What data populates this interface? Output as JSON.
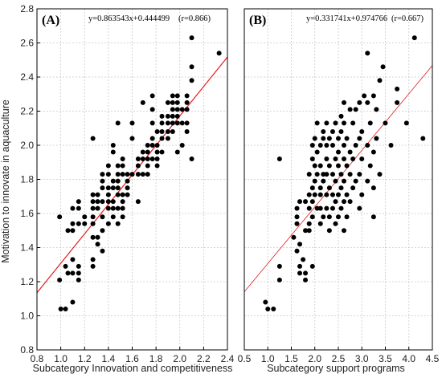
{
  "y_axis_label": "Motivation to innovate in aquaculture",
  "chart_data": [
    {
      "type": "scatter",
      "panel_label": "(A)",
      "equation": "y=0.863543x+0.444499",
      "r_text": "(r=0.866)",
      "xlabel": "Subcategory Innovation and competitiveness",
      "ylabel": "Motivation to innovate in aquaculture",
      "xlim": [
        0.8,
        2.4
      ],
      "ylim": [
        0.8,
        2.8
      ],
      "xticks": [
        "0.8",
        "1.0",
        "1.2",
        "1.4",
        "1.6",
        "1.8",
        "2.0",
        "2.2",
        "2.4"
      ],
      "yticks": [
        "0.8",
        "1.0",
        "1.2",
        "1.4",
        "1.6",
        "1.8",
        "2.0",
        "2.2",
        "2.4",
        "2.6",
        "2.8"
      ],
      "grid": true,
      "fit": {
        "slope": 0.863543,
        "intercept": 0.444499,
        "color": "#e31a1c"
      },
      "points": [
        [
          1.0,
          1.04
        ],
        [
          1.04,
          1.04
        ],
        [
          1.1,
          1.08
        ],
        [
          0.99,
          1.21
        ],
        [
          1.06,
          1.25
        ],
        [
          1.1,
          1.25
        ],
        [
          1.04,
          1.29
        ],
        [
          1.1,
          1.33
        ],
        [
          1.15,
          1.21
        ],
        [
          1.15,
          1.25
        ],
        [
          1.15,
          1.29
        ],
        [
          0.99,
          1.58
        ],
        [
          1.06,
          1.5
        ],
        [
          1.1,
          1.5
        ],
        [
          1.1,
          1.54
        ],
        [
          1.1,
          1.63
        ],
        [
          1.15,
          1.54
        ],
        [
          1.15,
          1.63
        ],
        [
          1.15,
          1.67
        ],
        [
          1.2,
          1.54
        ],
        [
          1.2,
          1.58
        ],
        [
          1.27,
          1.29
        ],
        [
          1.27,
          1.33
        ],
        [
          1.27,
          1.46
        ],
        [
          1.27,
          1.54
        ],
        [
          1.27,
          1.58
        ],
        [
          1.27,
          1.63
        ],
        [
          1.27,
          1.67
        ],
        [
          1.27,
          1.71
        ],
        [
          1.27,
          2.04
        ],
        [
          1.31,
          1.42
        ],
        [
          1.31,
          1.46
        ],
        [
          1.31,
          1.63
        ],
        [
          1.31,
          1.67
        ],
        [
          1.31,
          1.71
        ],
        [
          1.35,
          1.38
        ],
        [
          1.35,
          1.5
        ],
        [
          1.35,
          1.58
        ],
        [
          1.35,
          1.67
        ],
        [
          1.35,
          1.75
        ],
        [
          1.35,
          1.79
        ],
        [
          1.35,
          1.83
        ],
        [
          1.4,
          1.54
        ],
        [
          1.4,
          1.63
        ],
        [
          1.4,
          1.67
        ],
        [
          1.4,
          1.71
        ],
        [
          1.4,
          1.75
        ],
        [
          1.4,
          1.83
        ],
        [
          1.4,
          1.88
        ],
        [
          1.44,
          1.58
        ],
        [
          1.44,
          1.63
        ],
        [
          1.44,
          1.67
        ],
        [
          1.44,
          1.75
        ],
        [
          1.44,
          1.79
        ],
        [
          1.44,
          1.96
        ],
        [
          1.44,
          2.0
        ],
        [
          1.48,
          1.54
        ],
        [
          1.48,
          1.63
        ],
        [
          1.48,
          1.71
        ],
        [
          1.48,
          1.75
        ],
        [
          1.48,
          1.79
        ],
        [
          1.48,
          1.83
        ],
        [
          1.48,
          1.88
        ],
        [
          1.48,
          2.13
        ],
        [
          1.52,
          1.58
        ],
        [
          1.52,
          1.63
        ],
        [
          1.52,
          1.67
        ],
        [
          1.52,
          1.71
        ],
        [
          1.52,
          1.83
        ],
        [
          1.52,
          1.88
        ],
        [
          1.52,
          1.92
        ],
        [
          1.56,
          1.71
        ],
        [
          1.56,
          1.75
        ],
        [
          1.56,
          1.79
        ],
        [
          1.56,
          1.83
        ],
        [
          1.6,
          1.83
        ],
        [
          1.6,
          2.04
        ],
        [
          1.6,
          2.13
        ],
        [
          1.65,
          1.83
        ],
        [
          1.65,
          1.88
        ],
        [
          1.65,
          1.92
        ],
        [
          1.65,
          1.67
        ],
        [
          1.69,
          1.83
        ],
        [
          1.69,
          1.92
        ],
        [
          1.69,
          1.96
        ],
        [
          1.69,
          2.25
        ],
        [
          1.73,
          1.83
        ],
        [
          1.73,
          1.88
        ],
        [
          1.73,
          1.92
        ],
        [
          1.73,
          1.96
        ],
        [
          1.73,
          2.0
        ],
        [
          1.77,
          1.92
        ],
        [
          1.77,
          2.0
        ],
        [
          1.77,
          2.04
        ],
        [
          1.77,
          2.13
        ],
        [
          1.77,
          2.21
        ],
        [
          1.77,
          2.29
        ],
        [
          1.81,
          1.88
        ],
        [
          1.81,
          1.92
        ],
        [
          1.81,
          1.96
        ],
        [
          1.81,
          2.0
        ],
        [
          1.81,
          2.08
        ],
        [
          1.85,
          1.96
        ],
        [
          1.85,
          2.04
        ],
        [
          1.85,
          2.08
        ],
        [
          1.85,
          2.13
        ],
        [
          1.85,
          2.17
        ],
        [
          1.9,
          2.04
        ],
        [
          1.9,
          2.08
        ],
        [
          1.9,
          2.13
        ],
        [
          1.9,
          2.17
        ],
        [
          1.9,
          2.25
        ],
        [
          1.94,
          2.08
        ],
        [
          1.94,
          2.13
        ],
        [
          1.94,
          2.17
        ],
        [
          1.94,
          2.21
        ],
        [
          1.94,
          2.25
        ],
        [
          1.94,
          2.29
        ],
        [
          1.98,
          1.96
        ],
        [
          1.98,
          2.13
        ],
        [
          1.98,
          2.17
        ],
        [
          1.98,
          2.21
        ],
        [
          1.98,
          2.25
        ],
        [
          1.98,
          2.29
        ],
        [
          2.02,
          2.0
        ],
        [
          2.02,
          2.13
        ],
        [
          2.02,
          2.21
        ],
        [
          2.06,
          2.08
        ],
        [
          2.06,
          2.13
        ],
        [
          2.06,
          2.21
        ],
        [
          2.06,
          2.25
        ],
        [
          2.06,
          2.29
        ],
        [
          2.1,
          1.92
        ],
        [
          2.1,
          2.38
        ],
        [
          2.1,
          2.46
        ],
        [
          2.1,
          2.63
        ],
        [
          2.33,
          2.54
        ]
      ]
    },
    {
      "type": "scatter",
      "panel_label": "(B)",
      "equation": "y=0.331741x+0.974766",
      "r_text": "(r=0.667)",
      "xlabel": "Subcategory support programs",
      "xlim": [
        0.5,
        4.5
      ],
      "ylim": [
        0.8,
        2.8
      ],
      "xticks": [
        "0.5",
        "1.0",
        "1.5",
        "2.0",
        "2.5",
        "3.0",
        "3.5",
        "4.0",
        "4.5"
      ],
      "grid": true,
      "fit": {
        "slope": 0.331741,
        "intercept": 0.974766,
        "color": "#e31a1c"
      },
      "points": [
        [
          0.95,
          1.08
        ],
        [
          1.0,
          1.04
        ],
        [
          1.12,
          1.04
        ],
        [
          1.25,
          1.21
        ],
        [
          1.25,
          1.29
        ],
        [
          1.25,
          1.92
        ],
        [
          1.55,
          1.46
        ],
        [
          1.62,
          1.38
        ],
        [
          1.62,
          1.54
        ],
        [
          1.62,
          1.58
        ],
        [
          1.62,
          1.63
        ],
        [
          1.68,
          1.25
        ],
        [
          1.68,
          1.29
        ],
        [
          1.68,
          1.42
        ],
        [
          1.68,
          1.67
        ],
        [
          1.75,
          1.33
        ],
        [
          1.8,
          1.21
        ],
        [
          1.8,
          1.25
        ],
        [
          1.8,
          1.5
        ],
        [
          1.8,
          1.67
        ],
        [
          1.88,
          1.5
        ],
        [
          1.88,
          1.54
        ],
        [
          1.88,
          1.63
        ],
        [
          1.88,
          1.71
        ],
        [
          1.88,
          1.83
        ],
        [
          1.95,
          1.29
        ],
        [
          1.95,
          1.58
        ],
        [
          1.95,
          1.67
        ],
        [
          1.95,
          1.75
        ],
        [
          1.95,
          1.92
        ],
        [
          1.95,
          2.0
        ],
        [
          2.0,
          1.71
        ],
        [
          2.0,
          1.79
        ],
        [
          2.0,
          1.88
        ],
        [
          2.0,
          2.04
        ],
        [
          2.05,
          1.63
        ],
        [
          2.05,
          1.83
        ],
        [
          2.05,
          1.96
        ],
        [
          2.05,
          2.13
        ],
        [
          2.12,
          1.54
        ],
        [
          2.12,
          1.63
        ],
        [
          2.12,
          1.71
        ],
        [
          2.12,
          1.75
        ],
        [
          2.12,
          1.88
        ],
        [
          2.12,
          2.0
        ],
        [
          2.18,
          1.58
        ],
        [
          2.18,
          1.79
        ],
        [
          2.18,
          1.83
        ],
        [
          2.18,
          2.04
        ],
        [
          2.18,
          2.08
        ],
        [
          2.25,
          1.63
        ],
        [
          2.25,
          1.71
        ],
        [
          2.25,
          1.83
        ],
        [
          2.25,
          1.92
        ],
        [
          2.25,
          2.0
        ],
        [
          2.25,
          2.13
        ],
        [
          2.31,
          1.5
        ],
        [
          2.31,
          1.58
        ],
        [
          2.31,
          1.75
        ],
        [
          2.31,
          1.88
        ],
        [
          2.31,
          2.04
        ],
        [
          2.38,
          1.63
        ],
        [
          2.38,
          1.71
        ],
        [
          2.38,
          1.83
        ],
        [
          2.38,
          2.0
        ],
        [
          2.38,
          2.08
        ],
        [
          2.44,
          1.54
        ],
        [
          2.44,
          1.67
        ],
        [
          2.44,
          1.79
        ],
        [
          2.44,
          1.92
        ],
        [
          2.44,
          2.13
        ],
        [
          2.5,
          1.58
        ],
        [
          2.5,
          1.71
        ],
        [
          2.5,
          1.88
        ],
        [
          2.5,
          1.96
        ],
        [
          2.5,
          2.04
        ],
        [
          2.56,
          1.63
        ],
        [
          2.56,
          1.75
        ],
        [
          2.56,
          1.83
        ],
        [
          2.56,
          2.08
        ],
        [
          2.56,
          2.17
        ],
        [
          2.62,
          1.5
        ],
        [
          2.62,
          1.67
        ],
        [
          2.62,
          1.79
        ],
        [
          2.62,
          1.92
        ],
        [
          2.62,
          2.0
        ],
        [
          2.62,
          2.13
        ],
        [
          2.62,
          2.25
        ],
        [
          2.68,
          1.58
        ],
        [
          2.68,
          1.71
        ],
        [
          2.68,
          1.88
        ],
        [
          2.68,
          2.04
        ],
        [
          2.75,
          1.67
        ],
        [
          2.75,
          1.83
        ],
        [
          2.75,
          1.96
        ],
        [
          2.75,
          2.21
        ],
        [
          2.81,
          1.75
        ],
        [
          2.81,
          1.92
        ],
        [
          2.81,
          2.13
        ],
        [
          2.87,
          1.79
        ],
        [
          2.87,
          2.0
        ],
        [
          2.87,
          2.21
        ],
        [
          2.95,
          1.63
        ],
        [
          2.95,
          1.83
        ],
        [
          2.95,
          2.04
        ],
        [
          2.95,
          2.25
        ],
        [
          3.0,
          1.71
        ],
        [
          3.0,
          1.92
        ],
        [
          3.0,
          2.08
        ],
        [
          3.05,
          2.29
        ],
        [
          3.12,
          1.79
        ],
        [
          3.12,
          2.0
        ],
        [
          3.12,
          2.25
        ],
        [
          3.12,
          2.54
        ],
        [
          3.18,
          1.88
        ],
        [
          3.18,
          2.13
        ],
        [
          3.25,
          1.58
        ],
        [
          3.25,
          1.75
        ],
        [
          3.25,
          1.96
        ],
        [
          3.25,
          2.29
        ],
        [
          3.31,
          2.04
        ],
        [
          3.31,
          2.21
        ],
        [
          3.38,
          1.83
        ],
        [
          3.38,
          2.38
        ],
        [
          3.45,
          2.46
        ],
        [
          3.5,
          2.13
        ],
        [
          3.62,
          2.0
        ],
        [
          3.75,
          2.25
        ],
        [
          3.75,
          2.33
        ],
        [
          3.95,
          2.13
        ],
        [
          4.12,
          2.63
        ],
        [
          4.3,
          2.04
        ]
      ]
    }
  ]
}
